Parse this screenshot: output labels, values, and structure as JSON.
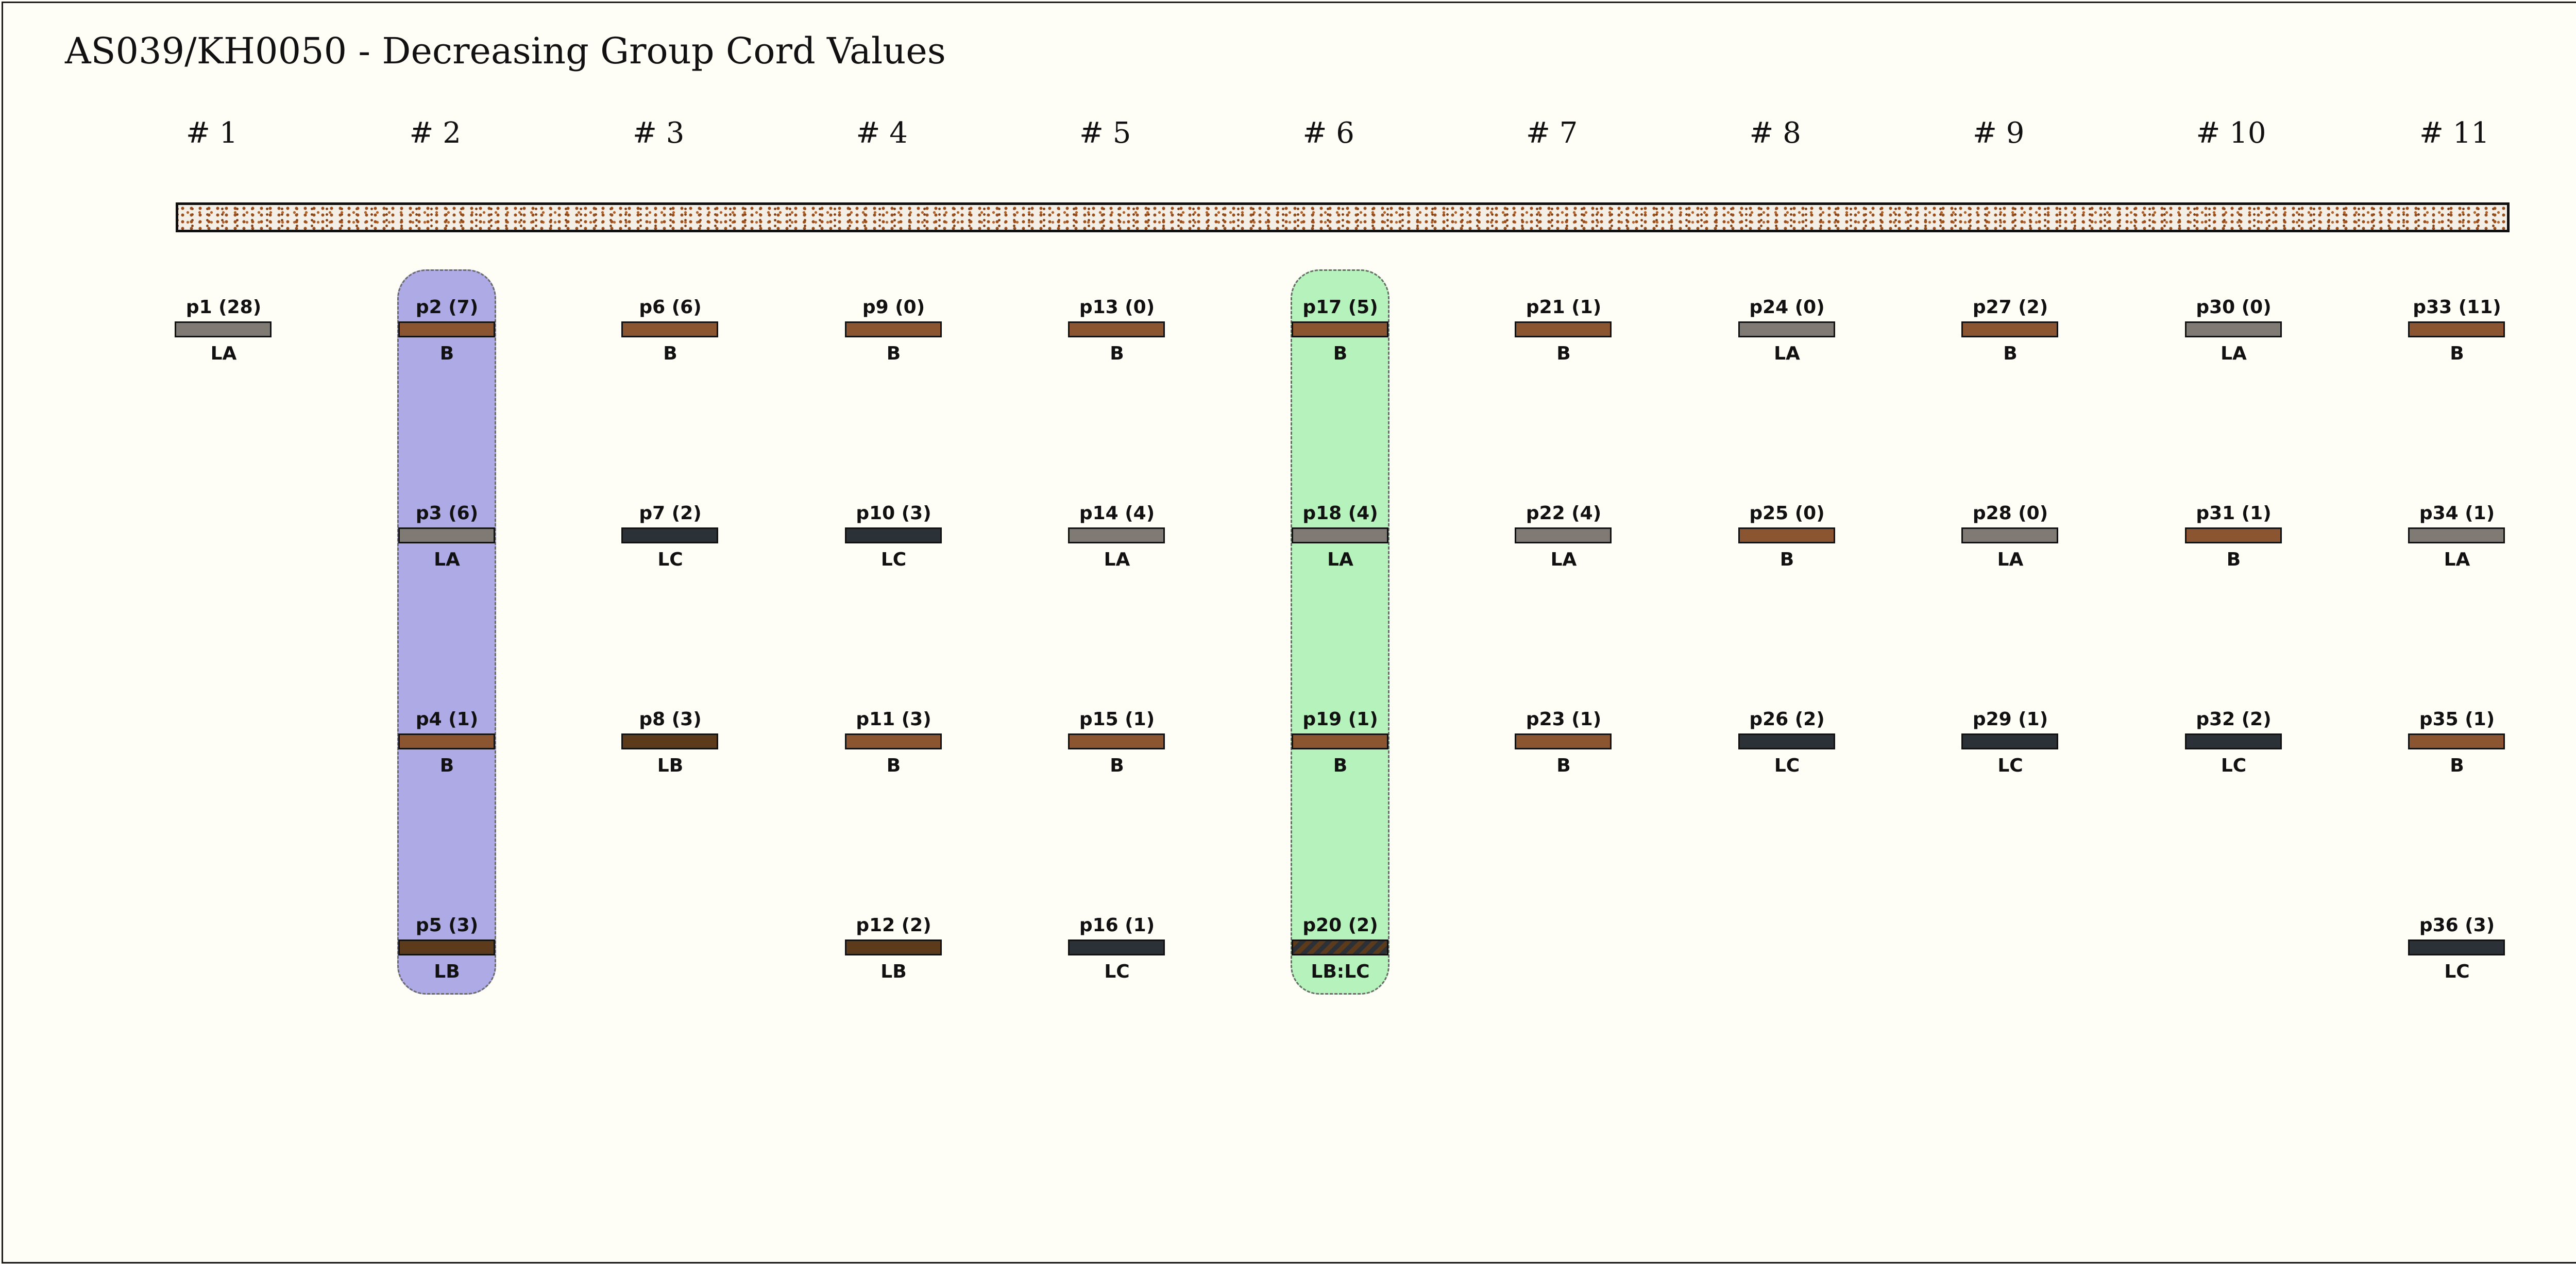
{
  "title": "AS039/KH0050 - Decreasing Group Cord Values",
  "groups": [
    "# 1",
    "# 2",
    "# 3",
    "# 4",
    "# 5",
    "# 6",
    "# 7",
    "# 8",
    "# 9",
    "# 10",
    "# 11"
  ],
  "highlights": [
    {
      "group_index": 1,
      "color": "#aeaae6"
    },
    {
      "group_index": 5,
      "color": "#b6f2bb"
    }
  ],
  "colors": {
    "B": "#8a5530",
    "LA": "#7f7a74",
    "LC": "#2b3136",
    "LB": "#5c3a1c",
    "primary_dots": "#9a4e1c",
    "background": "#fffef6"
  },
  "cords": [
    {
      "group": 0,
      "row": 0,
      "label": "p1 (28)",
      "color": "LA"
    },
    {
      "group": 1,
      "row": 0,
      "label": "p2 (7)",
      "color": "B"
    },
    {
      "group": 1,
      "row": 1,
      "label": "p3 (6)",
      "color": "LA"
    },
    {
      "group": 1,
      "row": 2,
      "label": "p4 (1)",
      "color": "B"
    },
    {
      "group": 1,
      "row": 3,
      "label": "p5 (3)",
      "color": "LB"
    },
    {
      "group": 2,
      "row": 0,
      "label": "p6 (6)",
      "color": "B"
    },
    {
      "group": 2,
      "row": 1,
      "label": "p7 (2)",
      "color": "LC"
    },
    {
      "group": 2,
      "row": 2,
      "label": "p8 (3)",
      "color": "LB"
    },
    {
      "group": 3,
      "row": 0,
      "label": "p9 (0)",
      "color": "B"
    },
    {
      "group": 3,
      "row": 1,
      "label": "p10 (3)",
      "color": "LC"
    },
    {
      "group": 3,
      "row": 2,
      "label": "p11 (3)",
      "color": "B"
    },
    {
      "group": 3,
      "row": 3,
      "label": "p12 (2)",
      "color": "LB"
    },
    {
      "group": 4,
      "row": 0,
      "label": "p13 (0)",
      "color": "B"
    },
    {
      "group": 4,
      "row": 1,
      "label": "p14 (4)",
      "color": "LA"
    },
    {
      "group": 4,
      "row": 2,
      "label": "p15 (1)",
      "color": "B"
    },
    {
      "group": 4,
      "row": 3,
      "label": "p16 (1)",
      "color": "LC"
    },
    {
      "group": 5,
      "row": 0,
      "label": "p17 (5)",
      "color": "B"
    },
    {
      "group": 5,
      "row": 1,
      "label": "p18 (4)",
      "color": "LA"
    },
    {
      "group": 5,
      "row": 2,
      "label": "p19 (1)",
      "color": "B"
    },
    {
      "group": 5,
      "row": 3,
      "label": "p20 (2)",
      "color": "LB:LC"
    },
    {
      "group": 6,
      "row": 0,
      "label": "p21 (1)",
      "color": "B"
    },
    {
      "group": 6,
      "row": 1,
      "label": "p22 (4)",
      "color": "LA"
    },
    {
      "group": 6,
      "row": 2,
      "label": "p23 (1)",
      "color": "B"
    },
    {
      "group": 7,
      "row": 0,
      "label": "p24 (0)",
      "color": "LA"
    },
    {
      "group": 7,
      "row": 1,
      "label": "p25 (0)",
      "color": "B"
    },
    {
      "group": 7,
      "row": 2,
      "label": "p26 (2)",
      "color": "LC"
    },
    {
      "group": 8,
      "row": 0,
      "label": "p27 (2)",
      "color": "B"
    },
    {
      "group": 8,
      "row": 1,
      "label": "p28 (0)",
      "color": "LA"
    },
    {
      "group": 8,
      "row": 2,
      "label": "p29 (1)",
      "color": "LC"
    },
    {
      "group": 9,
      "row": 0,
      "label": "p30 (0)",
      "color": "LA"
    },
    {
      "group": 9,
      "row": 1,
      "label": "p31 (1)",
      "color": "B"
    },
    {
      "group": 9,
      "row": 2,
      "label": "p32 (2)",
      "color": "LC"
    },
    {
      "group": 10,
      "row": 0,
      "label": "p33 (11)",
      "color": "B"
    },
    {
      "group": 10,
      "row": 1,
      "label": "p34 (1)",
      "color": "LA"
    },
    {
      "group": 10,
      "row": 2,
      "label": "p35 (1)",
      "color": "B"
    },
    {
      "group": 10,
      "row": 3,
      "label": "p36 (3)",
      "color": "LC"
    }
  ]
}
